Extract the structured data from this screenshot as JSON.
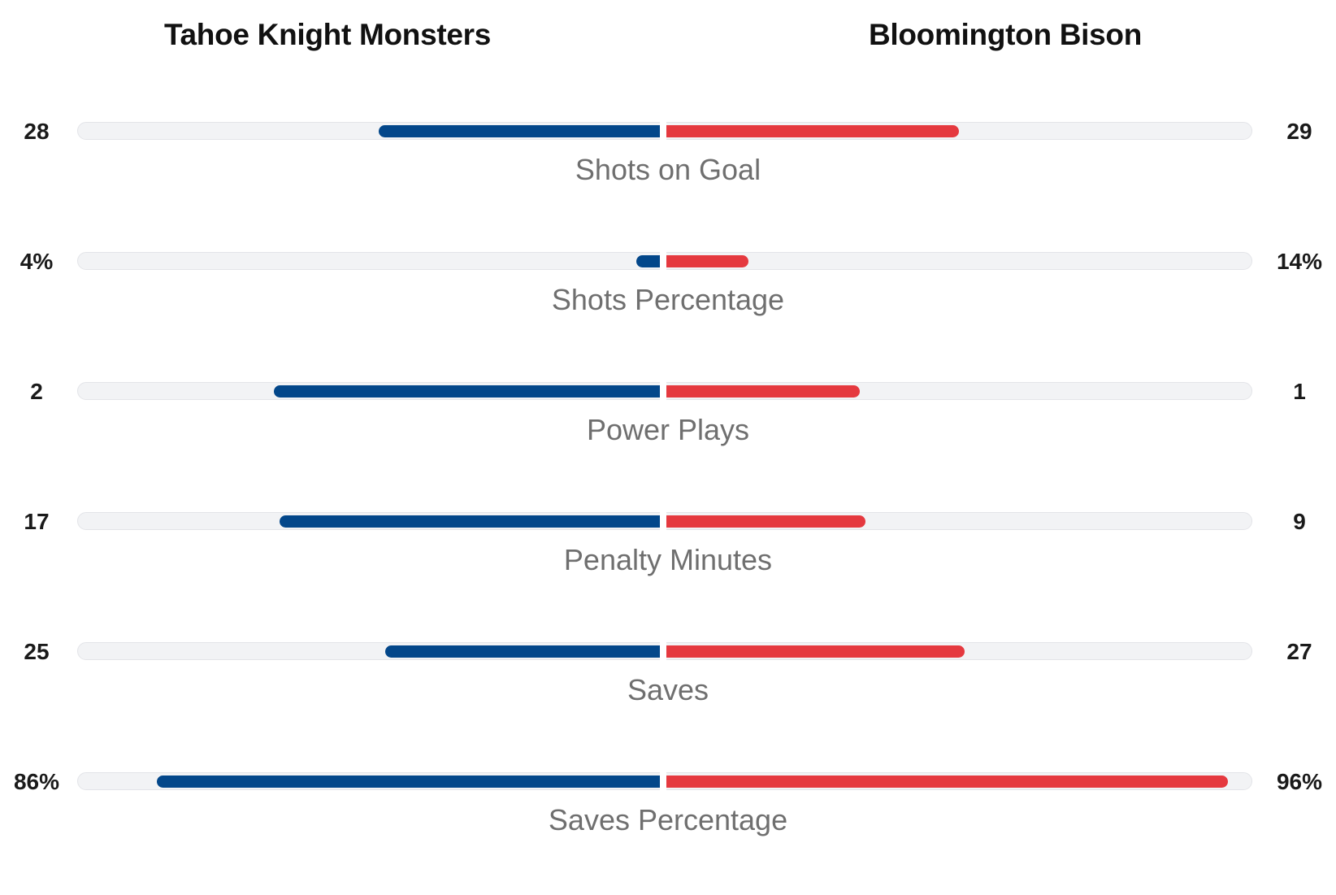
{
  "teams": {
    "home": "Tahoe Knight Monsters",
    "away": "Bloomington Bison"
  },
  "colors": {
    "home_bar": "#03478a",
    "away_bar": "#e5393f",
    "track": "#f2f3f5"
  },
  "chart_data": {
    "type": "bar",
    "orientation": "horizontal-diverging",
    "series": [
      {
        "name": "Tahoe Knight Monsters",
        "values": [
          28,
          4,
          2,
          17,
          25,
          86
        ]
      },
      {
        "name": "Bloomington Bison",
        "values": [
          29,
          14,
          1,
          9,
          27,
          96
        ]
      }
    ],
    "categories": [
      "Shots on Goal",
      "Shots Percentage",
      "Power Plays",
      "Penalty Minutes",
      "Saves",
      "Saves Percentage"
    ],
    "rows": [
      {
        "label": "Shots on Goal",
        "home_display": "28",
        "away_display": "29",
        "home_fraction": 0.48,
        "away_fraction": 0.5
      },
      {
        "label": "Shots Percentage",
        "home_display": "4%",
        "away_display": "14%",
        "home_fraction": 0.04,
        "away_fraction": 0.14
      },
      {
        "label": "Power Plays",
        "home_display": "2",
        "away_display": "1",
        "home_fraction": 0.66,
        "away_fraction": 0.33
      },
      {
        "label": "Penalty Minutes",
        "home_display": "17",
        "away_display": "9",
        "home_fraction": 0.65,
        "away_fraction": 0.34
      },
      {
        "label": "Saves",
        "home_display": "25",
        "away_display": "27",
        "home_fraction": 0.47,
        "away_fraction": 0.51
      },
      {
        "label": "Saves Percentage",
        "home_display": "86%",
        "away_display": "96%",
        "home_fraction": 0.86,
        "away_fraction": 0.96
      }
    ]
  }
}
